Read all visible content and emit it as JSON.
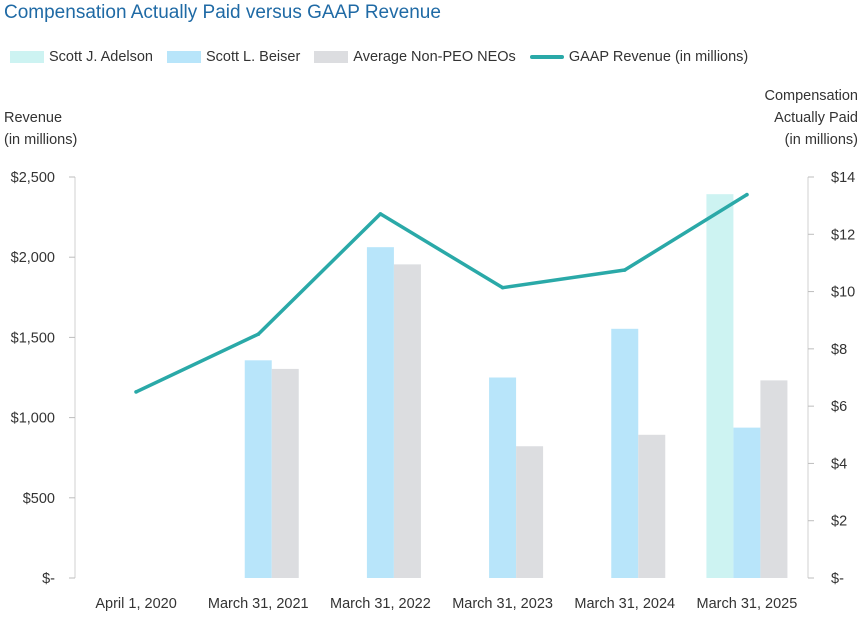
{
  "chart_data": {
    "type": "bar+line",
    "title": "Compensation Actually Paid versus GAAP Revenue",
    "categories": [
      "April 1, 2020",
      "March 31, 2021",
      "March 31, 2022",
      "March 31, 2023",
      "March 31, 2024",
      "March 31, 2025"
    ],
    "left_axis": {
      "label_line1": "Revenue",
      "label_line2": "(in millions)",
      "ylim": [
        0,
        2500
      ],
      "ticks": [
        0,
        500,
        1000,
        1500,
        2000,
        2500
      ],
      "tick_labels": [
        "$-",
        "$500",
        "$1,000",
        "$1,500",
        "$2,000",
        "$2,500"
      ]
    },
    "right_axis": {
      "label_line1": "Compensation",
      "label_line2": "Actually Paid",
      "label_line3": "(in millions)",
      "ylim": [
        0,
        14
      ],
      "ticks": [
        0,
        2,
        4,
        6,
        8,
        10,
        12,
        14
      ],
      "tick_labels": [
        "$-",
        "$2",
        "$4",
        "$6",
        "$8",
        "$10",
        "$12",
        "$14"
      ]
    },
    "series": [
      {
        "name": "Scott J. Adelson",
        "type": "bar",
        "axis": "right",
        "color": "#cdf3f2",
        "values": [
          null,
          null,
          null,
          null,
          null,
          13.4
        ]
      },
      {
        "name": "Scott L. Beiser",
        "type": "bar",
        "axis": "right",
        "color": "#b8e5fa",
        "values": [
          null,
          7.6,
          11.55,
          7.0,
          8.7,
          5.25
        ]
      },
      {
        "name": "Average Non-PEO NEOs",
        "type": "bar",
        "axis": "right",
        "color": "#dcdde0",
        "values": [
          null,
          7.3,
          10.95,
          4.6,
          5.0,
          6.9
        ]
      },
      {
        "name": "GAAP Revenue (in millions)",
        "type": "line",
        "axis": "left",
        "color": "#2aa9a8",
        "values": [
          1160,
          1520,
          2270,
          1810,
          1920,
          2390
        ]
      }
    ]
  }
}
